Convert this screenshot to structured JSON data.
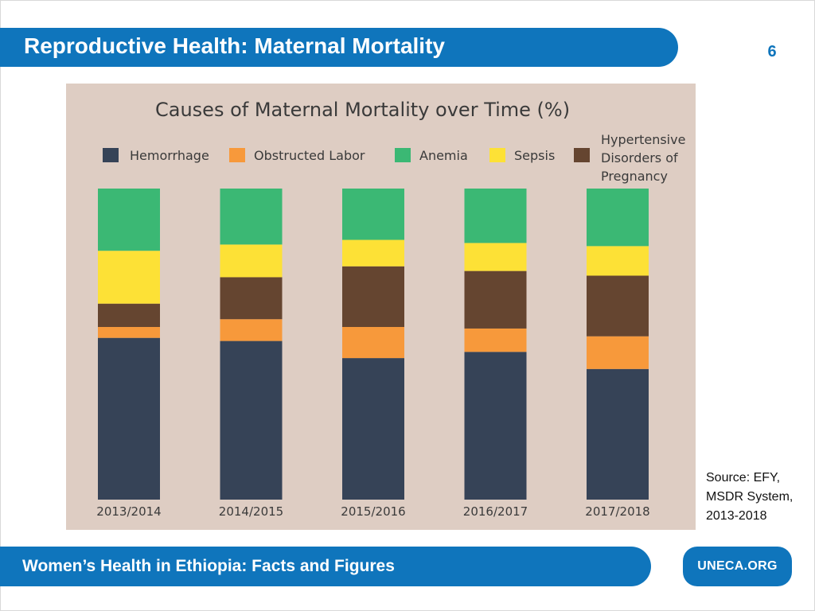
{
  "slide": {
    "title": "Reproductive Health: Maternal Mortality",
    "page_number": "6"
  },
  "source": {
    "lines": [
      "Source: EFY,",
      "MSDR System,",
      "2013-2018"
    ]
  },
  "footer": {
    "title": "Women’s Health in Ethiopia: Facts and Figures",
    "brand": "UNECA.ORG"
  },
  "colors": {
    "background_panel": "#decdc3",
    "brand_blue": "#0f75bc",
    "text_dark": "#3a3a3a"
  },
  "chart_data": {
    "type": "bar",
    "stacked": true,
    "title": "Causes of Maternal Mortality over Time (%)",
    "xlabel": "",
    "ylabel": "",
    "ylim": [
      0,
      100
    ],
    "grid": false,
    "legend_position": "top",
    "categories": [
      "2013/2014",
      "2014/2015",
      "2015/2016",
      "2016/2017",
      "2017/2018"
    ],
    "series": [
      {
        "name": "Hemorrhage",
        "color": "#364357",
        "values": [
          52,
          51,
          45.5,
          47.5,
          42
        ]
      },
      {
        "name": "Obstructed Labor",
        "color": "#f7993b",
        "values": [
          3.5,
          7,
          10,
          7.5,
          10.5
        ]
      },
      {
        "name": "Hypertensive Disorders of Pregnancy",
        "color": "#654530",
        "values": [
          7.5,
          13.5,
          19.5,
          18.5,
          19.5
        ]
      },
      {
        "name": "Sepsis",
        "color": "#fde136",
        "values": [
          17,
          10.5,
          8.5,
          9,
          9.5
        ]
      },
      {
        "name": "Anemia",
        "color": "#3bb874",
        "values": [
          20,
          18,
          16.5,
          17.5,
          18.5
        ]
      }
    ],
    "legend": [
      {
        "label": "Hemorrhage",
        "color": "#364357"
      },
      {
        "label": "Obstructed Labor",
        "color": "#f7993b"
      },
      {
        "label": "Anemia",
        "color": "#3bb874"
      },
      {
        "label": "Sepsis",
        "color": "#fde136"
      },
      {
        "label": "Hypertensive Disorders of Pregnancy",
        "color": "#654530",
        "lines": [
          "Hypertensive",
          "Disorders of",
          "Pregnancy"
        ]
      }
    ]
  }
}
